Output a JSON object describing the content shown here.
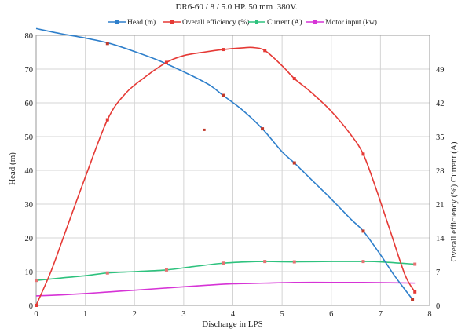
{
  "chart_data": {
    "type": "line",
    "title": "DR6-60 / 8 / 5.0 HP. 50 mm .380V.",
    "xlabel": "Discharge in LPS",
    "ylabel_left": "Head (m)",
    "ylabel_right": "Overall efficiency (%) Current (A)",
    "xlim": [
      0,
      8
    ],
    "ylim_left": [
      0,
      80
    ],
    "ylim_right": [
      0,
      56
    ],
    "x_ticks": [
      "0",
      "1",
      "2",
      "3",
      "4",
      "5",
      "6",
      "7",
      "8"
    ],
    "y_left_ticks": [
      "0",
      "10",
      "20",
      "30",
      "40",
      "50",
      "60",
      "70",
      "80"
    ],
    "y_right_ticks": [
      "0",
      "7",
      "14",
      "21",
      "28",
      "35",
      "42",
      "49"
    ],
    "grid": true,
    "legend_position": "top",
    "series": [
      {
        "name": "Head (m)",
        "axis": "left",
        "color": "#2e7fcb",
        "marker_color": "#c0392b",
        "curve": [
          [
            0,
            82
          ],
          [
            0.5,
            80.5
          ],
          [
            1,
            79.2
          ],
          [
            1.5,
            77.6
          ],
          [
            2,
            75.2
          ],
          [
            2.5,
            72.5
          ],
          [
            3,
            69.2
          ],
          [
            3.5,
            65.5
          ],
          [
            3.8,
            62.2
          ],
          [
            4.2,
            57.8
          ],
          [
            4.6,
            52.3
          ],
          [
            5,
            45.5
          ],
          [
            5.25,
            42.2
          ],
          [
            5.6,
            37.2
          ],
          [
            6,
            31.5
          ],
          [
            6.4,
            25.5
          ],
          [
            6.65,
            22
          ],
          [
            7,
            15
          ],
          [
            7.3,
            8.5
          ],
          [
            7.65,
            1.8
          ]
        ],
        "points": [
          [
            1.45,
            77.6
          ],
          [
            3.8,
            62.2
          ],
          [
            4.6,
            52.3
          ],
          [
            5.25,
            42.2
          ],
          [
            6.65,
            22
          ],
          [
            7.65,
            1.8
          ]
        ]
      },
      {
        "name": "Overall efficiency  (%)",
        "axis": "left",
        "color": "#e53935",
        "marker_color": "#e53935",
        "curve": [
          [
            0,
            0
          ],
          [
            0.3,
            10
          ],
          [
            0.6,
            22
          ],
          [
            1,
            38
          ],
          [
            1.45,
            55
          ],
          [
            1.8,
            62.5
          ],
          [
            2.2,
            67.5
          ],
          [
            2.65,
            72
          ],
          [
            3,
            74
          ],
          [
            3.4,
            75
          ],
          [
            3.8,
            75.8
          ],
          [
            4.2,
            76.3
          ],
          [
            4.4,
            76.4
          ],
          [
            4.65,
            75.5
          ],
          [
            5,
            71
          ],
          [
            5.25,
            67.2
          ],
          [
            5.6,
            63
          ],
          [
            6,
            57.5
          ],
          [
            6.4,
            50.5
          ],
          [
            6.65,
            44.8
          ],
          [
            6.9,
            35
          ],
          [
            7.2,
            22
          ],
          [
            7.5,
            9
          ],
          [
            7.7,
            4
          ]
        ],
        "points": [
          [
            0,
            0
          ],
          [
            1.45,
            55
          ],
          [
            2.65,
            72
          ],
          [
            3.8,
            75.8
          ],
          [
            4.65,
            75.5
          ],
          [
            5.25,
            67.2
          ],
          [
            6.65,
            44.8
          ],
          [
            7.7,
            4
          ]
        ]
      },
      {
        "name": "Current (A)",
        "axis": "left",
        "color": "#2ec27e",
        "marker_color": "#e57373",
        "curve": [
          [
            0,
            7.4
          ],
          [
            0.5,
            8.1
          ],
          [
            1,
            8.8
          ],
          [
            1.45,
            9.6
          ],
          [
            2,
            10
          ],
          [
            2.65,
            10.5
          ],
          [
            3.2,
            11.5
          ],
          [
            3.8,
            12.5
          ],
          [
            4.3,
            12.9
          ],
          [
            4.65,
            13
          ],
          [
            5.25,
            12.9
          ],
          [
            6,
            13
          ],
          [
            6.65,
            13
          ],
          [
            7,
            12.9
          ],
          [
            7.7,
            12.2
          ]
        ],
        "points": [
          [
            0,
            7.4
          ],
          [
            1.45,
            9.6
          ],
          [
            2.65,
            10.5
          ],
          [
            3.8,
            12.5
          ],
          [
            4.65,
            13
          ],
          [
            5.25,
            12.9
          ],
          [
            6.65,
            13
          ],
          [
            7.7,
            12.2
          ]
        ]
      },
      {
        "name": "Motor input (kw)",
        "axis": "left",
        "color": "#d633d6",
        "marker_color": "#d633d6",
        "curve": [
          [
            0,
            2.8
          ],
          [
            0.5,
            3.1
          ],
          [
            1,
            3.5
          ],
          [
            1.5,
            4
          ],
          [
            2,
            4.5
          ],
          [
            2.5,
            5
          ],
          [
            3,
            5.5
          ],
          [
            3.5,
            6
          ],
          [
            4,
            6.4
          ],
          [
            4.65,
            6.6
          ],
          [
            5.25,
            6.8
          ],
          [
            6,
            6.8
          ],
          [
            6.65,
            6.8
          ],
          [
            7.2,
            6.7
          ],
          [
            7.7,
            6.6
          ]
        ],
        "points": []
      }
    ],
    "annotation_points": [
      [
        3.42,
        52
      ]
    ]
  }
}
